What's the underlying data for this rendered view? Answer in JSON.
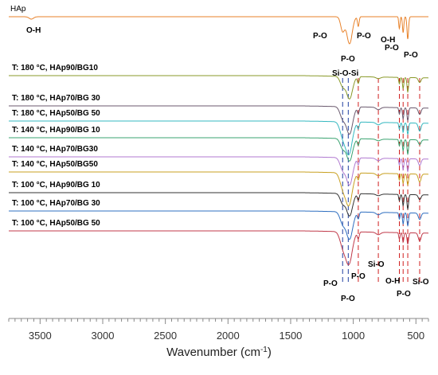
{
  "chart_data": {
    "type": "line",
    "title": "",
    "xlabel": "Wavenumber (cm",
    "xlabel_superscript": "-1",
    "xlabel_suffix": ")",
    "ylabel": "",
    "xlim": [
      3750,
      400
    ],
    "x_reversed": true,
    "grid": false,
    "ticks": [
      {
        "value": 3500,
        "label": "3500"
      },
      {
        "value": 3000,
        "label": "3000"
      },
      {
        "value": 2500,
        "label": "2500"
      },
      {
        "value": 2000,
        "label": "2000"
      },
      {
        "value": 1500,
        "label": "1500"
      },
      {
        "value": 1000,
        "label": "1000"
      },
      {
        "value": 500,
        "label": "500"
      }
    ],
    "series": [
      {
        "name": "HAp",
        "color": "#e8822a",
        "kind": "hap"
      },
      {
        "name": "T: 180 °C, HAp90/BG10",
        "color": "#8a9a2a",
        "kind": "c90"
      },
      {
        "name": "T: 180 °C, HAp70/BG 30",
        "color": "#6b5a6e",
        "kind": "c70"
      },
      {
        "name": "T: 180 °C, HAp50/BG 50",
        "color": "#35b8c0",
        "kind": "c50"
      },
      {
        "name": "T: 140 °C, HAp90/BG 10",
        "color": "#3aa370",
        "kind": "c90"
      },
      {
        "name": "T: 140 °C, HAp70/BG30",
        "color": "#b07ad0",
        "kind": "c70"
      },
      {
        "name": "T: 140 °C, HAp50/BG50",
        "color": "#c8a020",
        "kind": "c50"
      },
      {
        "name": "T: 100 °C, HAp90/BG 10",
        "color": "#333333",
        "kind": "c90"
      },
      {
        "name": "T: 100 °C, HAp70/BG 30",
        "color": "#2f6fc0",
        "kind": "c70"
      },
      {
        "name": "T: 100 °C, HAp50/BG 50",
        "color": "#c03a4a",
        "kind": "c50"
      }
    ],
    "annotations": {
      "top": [
        {
          "text": "O-H",
          "wn": 3420
        },
        {
          "text": "P-O",
          "wn": 1085
        },
        {
          "text": "P-O",
          "wn": 960
        },
        {
          "text": "P-O",
          "wn": 1030
        },
        {
          "text": "O-H",
          "wn": 632
        },
        {
          "text": "P-O",
          "wn": 602
        },
        {
          "text": "P-O",
          "wn": 565
        },
        {
          "text": "Si-O-Si",
          "wn": 1040,
          "color": "#1f3fa0"
        }
      ],
      "bottom": [
        {
          "text": "Si-O",
          "wn": 800
        },
        {
          "text": "O-H",
          "wn": 632
        },
        {
          "text": "Si-O",
          "wn": 470
        },
        {
          "text": "P-O",
          "wn": 1085
        },
        {
          "text": "P-O",
          "wn": 960
        },
        {
          "text": "P-O",
          "wn": 1030
        },
        {
          "text": "P-O",
          "wn": 565
        }
      ]
    },
    "reference_lines": [
      {
        "wn": 1085,
        "color": "#1f3fa0",
        "style": "dashed"
      },
      {
        "wn": 1040,
        "color": "#1f3fa0",
        "style": "dashed"
      },
      {
        "wn": 960,
        "color": "#d02020",
        "style": "dashed"
      },
      {
        "wn": 800,
        "color": "#d02020",
        "style": "dashed"
      },
      {
        "wn": 632,
        "color": "#d02020",
        "style": "dashed"
      },
      {
        "wn": 602,
        "color": "#d02020",
        "style": "dashed"
      },
      {
        "wn": 565,
        "color": "#d02020",
        "style": "dashed"
      },
      {
        "wn": 470,
        "color": "#d02020",
        "style": "dashed"
      }
    ]
  }
}
